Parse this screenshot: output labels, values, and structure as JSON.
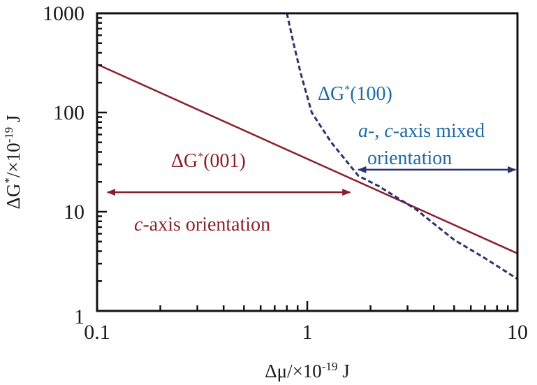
{
  "chart_data": {
    "type": "line",
    "xscale": "log",
    "yscale": "log",
    "xlim": [
      0.1,
      10
    ],
    "ylim": [
      1,
      1000
    ],
    "xticks": [
      "0.1",
      "1",
      "10"
    ],
    "yticks": [
      "1",
      "10",
      "100",
      "1000"
    ],
    "xlabel": {
      "main": "Δμ/×10",
      "sup": "-19",
      "unit": " J"
    },
    "ylabel": {
      "main": "ΔG",
      "star": "*",
      "mid": "/×10",
      "sup": "-19",
      "unit": " J"
    },
    "grid": false,
    "series": [
      {
        "name": "ΔG*(001)",
        "style": "solid",
        "color": "#8a1f2c",
        "x": [
          0.1,
          10
        ],
        "y": [
          306,
          3.8
        ]
      },
      {
        "name": "ΔG*(100)",
        "style": "dashed",
        "color": "#2b3270",
        "x": [
          0.8,
          0.86,
          0.93,
          1.05,
          1.3,
          1.75,
          2.2,
          3.3,
          5,
          7,
          10
        ],
        "y": [
          1000,
          500,
          250,
          100,
          50,
          23,
          18,
          10.5,
          5.2,
          3.4,
          2.1
        ]
      }
    ],
    "annotations": [
      {
        "id": "g001",
        "pre": "ΔG",
        "star": "*",
        "post": "(001)",
        "color": "#8a1f2c"
      },
      {
        "id": "g100",
        "pre": "ΔG",
        "star": "*",
        "post": "(100)",
        "color": "#1f6aa8"
      },
      {
        "id": "c_axis",
        "italic": "c",
        "text": "-axis orientation",
        "color": "#8a1f2c"
      },
      {
        "id": "mixed",
        "italic1": "a",
        "text1": "-, ",
        "italic2": "c",
        "text2": "-axis mixed",
        "line2": "orientation",
        "color": "#1f6aa8"
      }
    ],
    "arrows": [
      {
        "name": "c-axis-range-arrow",
        "x": [
          0.112,
          1.6
        ],
        "y": 15.7,
        "color": "#8a1f2c"
      },
      {
        "name": "mixed-range-arrow",
        "x": [
          1.75,
          9.8
        ],
        "y": 26.5,
        "color": "#2b3270"
      }
    ]
  }
}
